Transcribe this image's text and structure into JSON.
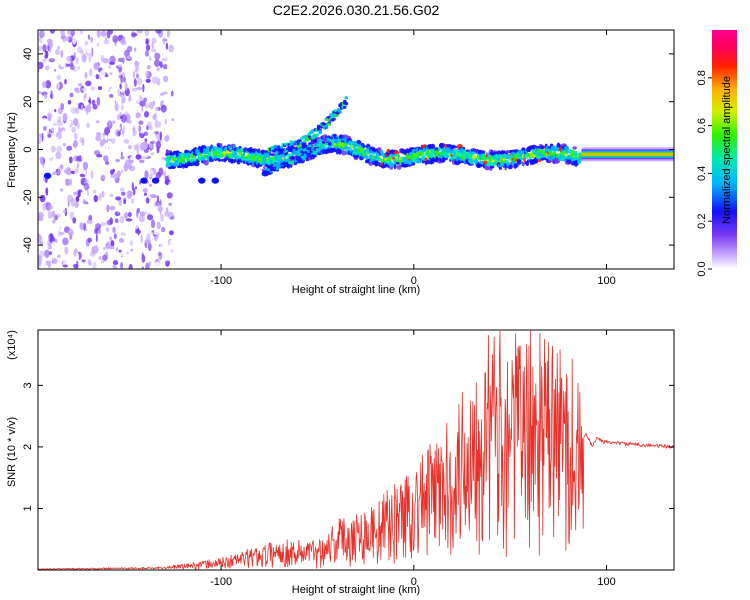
{
  "figure_title": "C2E2.2026.030.21.56.G02",
  "chart_data": [
    {
      "type": "heatmap",
      "panel": "spectrogram",
      "title": "C2E2.2026.030.21.56.G02",
      "xlabel": "Height of straight line (km)",
      "ylabel": "Frequency (Hz)",
      "xlim": [
        -195,
        135
      ],
      "ylim": [
        -50,
        50
      ],
      "xticks": [
        -100,
        0,
        100
      ],
      "yticks": [
        -40,
        -20,
        0,
        20,
        40
      ],
      "colorbar": {
        "label": "Normalized spectral amplitude",
        "range": [
          0.0,
          1.0
        ],
        "ticks": [
          0.0,
          0.2,
          0.4,
          0.6,
          0.8
        ],
        "colormap": "rainbow"
      },
      "features": [
        {
          "name": "noise-region",
          "x_range": [
            -195,
            -125
          ],
          "freq_range": [
            -50,
            50
          ]
        },
        {
          "name": "main-track",
          "x_range": [
            -128,
            135
          ],
          "freq_approx": 0
        },
        {
          "name": "branch-upper",
          "x_range": [
            -75,
            -35
          ],
          "freq_range": [
            0,
            20
          ]
        },
        {
          "name": "branch-lower",
          "x_range": [
            -78,
            -40
          ],
          "freq_range": [
            -10,
            5
          ]
        },
        {
          "name": "steady-tail",
          "x_range": [
            87,
            135
          ],
          "freq_approx": -2
        }
      ]
    },
    {
      "type": "line",
      "panel": "snr",
      "xlabel": "Height of straight line (km)",
      "ylabel": "SNR (10 * v/v)",
      "y_scale_label": "(x10⁴)",
      "xlim": [
        -195,
        135
      ],
      "ylim": [
        0,
        3.9
      ],
      "xticks": [
        -100,
        0,
        100
      ],
      "yticks": [
        1,
        2,
        3
      ],
      "color": "#e8302a",
      "envelope": {
        "x": [
          -195,
          -130,
          -100,
          -70,
          -50,
          -40,
          -20,
          0,
          20,
          35,
          50,
          65,
          85,
          88,
          95,
          110,
          135
        ],
        "y": [
          0.02,
          0.05,
          0.2,
          0.5,
          0.5,
          0.85,
          1.1,
          1.75,
          2.5,
          3.9,
          3.9,
          3.9,
          3.5,
          2.1,
          2.1,
          2.05,
          2.0
        ]
      }
    }
  ]
}
